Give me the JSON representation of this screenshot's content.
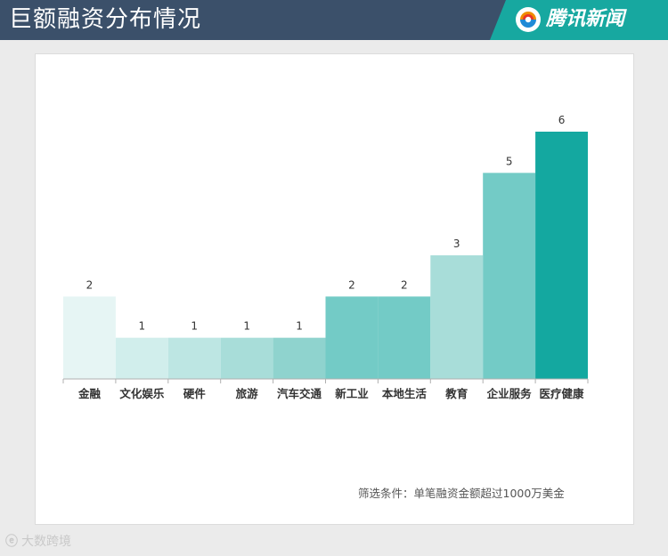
{
  "header": {
    "title": "巨额融资分布情况",
    "brand": "腾讯新闻"
  },
  "footnote": "筛选条件：单笔融资金额超过1000万美金",
  "watermark": {
    "icon": "weibo-icon",
    "text": "大数跨境"
  },
  "colors": {
    "header_bg": "#3b506a",
    "brand_bg": "#17a8a0",
    "bar_shades": [
      "#e6f5f4",
      "#d1eeec",
      "#bde6e3",
      "#a8ddd9",
      "#8fd3ce",
      "#73cbc6",
      "#73cbc6",
      "#a8ddd9",
      "#73cbc6",
      "#14a8a0"
    ]
  },
  "chart_data": {
    "type": "bar",
    "categories": [
      "金融",
      "文化娱乐",
      "硬件",
      "旅游",
      "汽车交通",
      "新工业",
      "本地生活",
      "教育",
      "企业服务",
      "医疗健康"
    ],
    "values": [
      2,
      1,
      1,
      1,
      1,
      2,
      2,
      3,
      5,
      6
    ],
    "value_labels": [
      "2",
      "1",
      "1",
      "1",
      "1",
      "2",
      "2",
      "3",
      "5",
      "6"
    ],
    "ylim": [
      0,
      6
    ],
    "grid": false,
    "legend": "none"
  }
}
